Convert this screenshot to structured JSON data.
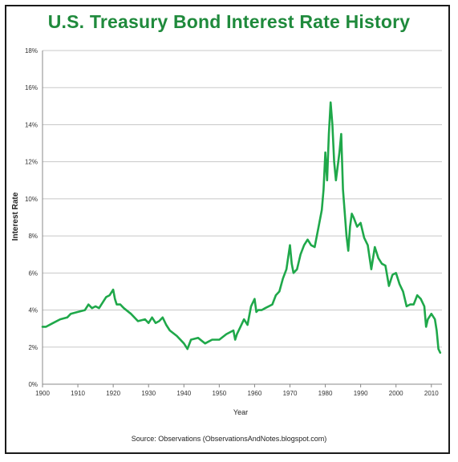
{
  "chart_data": {
    "type": "line",
    "title": "U.S. Treasury Bond Interest Rate History",
    "xlabel": "Year",
    "ylabel": "Interest Rate",
    "source": "Source: Observations   (ObservationsAndNotes.blogspot.com)",
    "xlim": [
      1900,
      2013
    ],
    "ylim": [
      0,
      18
    ],
    "x_ticks": [
      1900,
      1910,
      1920,
      1930,
      1940,
      1950,
      1960,
      1970,
      1980,
      1990,
      2000,
      2010
    ],
    "y_ticks": [
      0,
      2,
      4,
      6,
      8,
      10,
      12,
      14,
      16,
      18
    ],
    "y_tick_labels": [
      "0%",
      "2%",
      "4%",
      "6%",
      "8%",
      "10%",
      "12%",
      "14%",
      "16%",
      "18%"
    ],
    "grid": true,
    "line_color": "#1fa84a",
    "series": [
      {
        "x": [
          1900,
          1901,
          1903,
          1905,
          1907,
          1908,
          1910,
          1912,
          1913,
          1914,
          1915,
          1916,
          1917,
          1918,
          1919,
          1920,
          1920.5,
          1921,
          1922,
          1923,
          1925,
          1927,
          1929,
          1930,
          1931,
          1932,
          1933,
          1934,
          1935,
          1936,
          1938,
          1940,
          1941,
          1942,
          1944,
          1946,
          1947,
          1948,
          1950,
          1952,
          1954,
          1954.5,
          1955,
          1956,
          1957,
          1958,
          1959,
          1960,
          1960.5,
          1961,
          1962,
          1963,
          1965,
          1966,
          1967,
          1968,
          1969,
          1970,
          1970.5,
          1971,
          1972,
          1973,
          1974,
          1975,
          1976,
          1977,
          1978,
          1979,
          1979.5,
          1980,
          1980.5,
          1981,
          1981.5,
          1982,
          1982.5,
          1983,
          1984,
          1984.5,
          1985,
          1986,
          1986.5,
          1987,
          1987.5,
          1988,
          1989,
          1990,
          1991,
          1992,
          1993,
          1994,
          1995,
          1996,
          1997,
          1998,
          1999,
          2000,
          2001,
          2002,
          2003,
          2004,
          2005,
          2006,
          2007,
          2008,
          2008.5,
          2009,
          2010,
          2011,
          2011.5,
          2012,
          2012.5
        ],
        "values": [
          3.1,
          3.1,
          3.3,
          3.5,
          3.6,
          3.8,
          3.9,
          4.0,
          4.3,
          4.1,
          4.2,
          4.1,
          4.4,
          4.7,
          4.8,
          5.1,
          4.6,
          4.3,
          4.3,
          4.1,
          3.8,
          3.4,
          3.5,
          3.3,
          3.6,
          3.3,
          3.4,
          3.6,
          3.2,
          2.9,
          2.6,
          2.2,
          1.9,
          2.4,
          2.5,
          2.2,
          2.3,
          2.4,
          2.4,
          2.7,
          2.9,
          2.4,
          2.7,
          3.1,
          3.5,
          3.2,
          4.2,
          4.6,
          3.9,
          4.0,
          4.0,
          4.1,
          4.3,
          4.8,
          5.0,
          5.7,
          6.2,
          7.5,
          6.5,
          6.0,
          6.2,
          7.0,
          7.5,
          7.8,
          7.5,
          7.4,
          8.4,
          9.4,
          10.5,
          12.5,
          11.0,
          13.5,
          15.2,
          14.0,
          12.0,
          11.0,
          12.5,
          13.5,
          10.5,
          8.0,
          7.2,
          8.5,
          9.2,
          9.0,
          8.5,
          8.7,
          7.9,
          7.5,
          6.2,
          7.4,
          6.8,
          6.5,
          6.4,
          5.3,
          5.9,
          6.0,
          5.4,
          5.0,
          4.2,
          4.3,
          4.3,
          4.8,
          4.6,
          4.2,
          3.1,
          3.5,
          3.8,
          3.5,
          2.9,
          1.9,
          1.7
        ]
      }
    ]
  }
}
